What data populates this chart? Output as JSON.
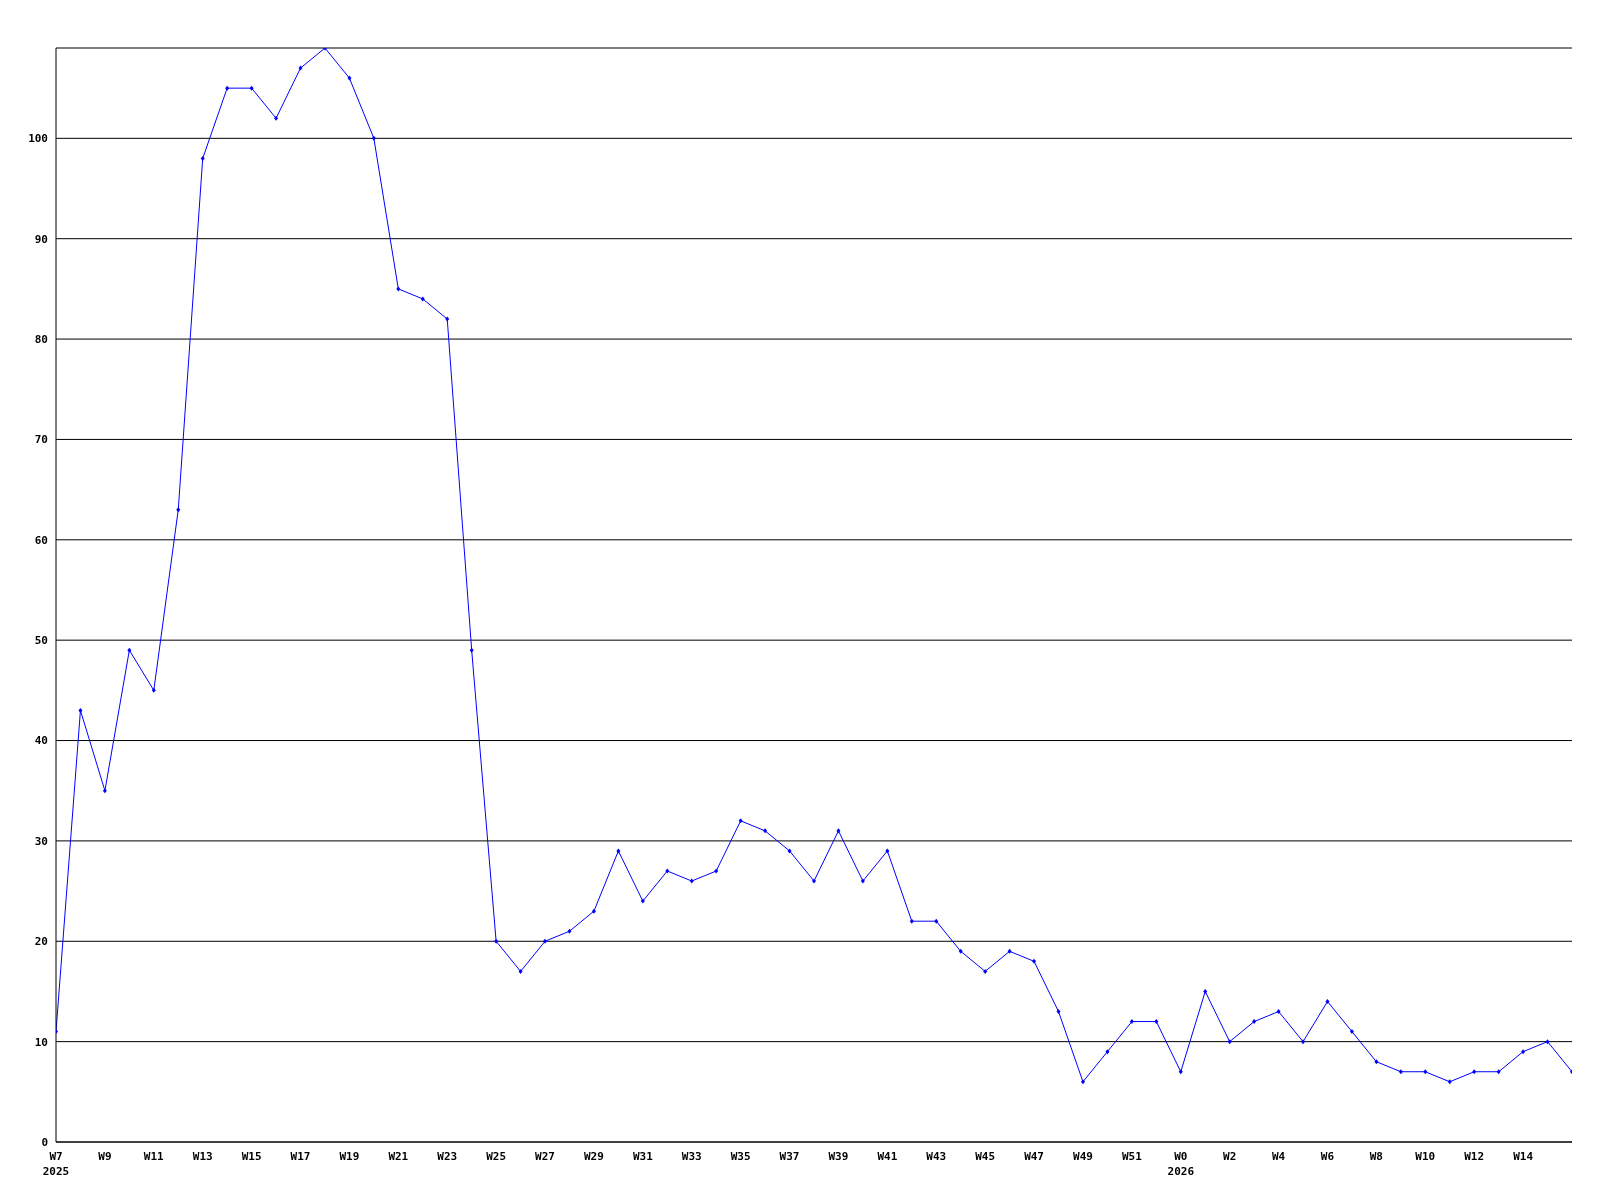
{
  "chart_data": {
    "type": "line",
    "categories": [
      "W7\n2025",
      null,
      "W9",
      null,
      "W11",
      null,
      "W13",
      null,
      "W15",
      null,
      "W17",
      null,
      "W19",
      null,
      "W21",
      null,
      "W23",
      null,
      "W25",
      null,
      "W27",
      null,
      "W29",
      null,
      "W31",
      null,
      "W33",
      null,
      "W35",
      null,
      "W37",
      null,
      "W39",
      null,
      "W41",
      null,
      "W43",
      null,
      "W45",
      null,
      "W47",
      null,
      "W49",
      null,
      "W51",
      null,
      "W0\n2026",
      null,
      "W2",
      null,
      "W4",
      null,
      "W6",
      null,
      "W8",
      null,
      "W10",
      null,
      "W12",
      null,
      "W14",
      null,
      null
    ],
    "series": [
      {
        "color": "#0000ff",
        "values": [
          11,
          43,
          35,
          49,
          45,
          63,
          98,
          105,
          105,
          102,
          107,
          109,
          106,
          100,
          85,
          84,
          82,
          49,
          20,
          17,
          20,
          21,
          23,
          29,
          24,
          27,
          26,
          27,
          32,
          31,
          29,
          26,
          31,
          26,
          29,
          22,
          22,
          19,
          17,
          19,
          18,
          13,
          6,
          9,
          12,
          12,
          7,
          15,
          10,
          12,
          13,
          10,
          14,
          11,
          8,
          7,
          7,
          6,
          7,
          7,
          9,
          10,
          7
        ]
      }
    ],
    "ylim": [
      0,
      109
    ],
    "yticks": [
      0,
      10,
      20,
      30,
      40,
      50,
      60,
      70,
      80,
      90,
      100
    ],
    "grid": "y",
    "marker": "diamond",
    "line_style": "solid"
  }
}
